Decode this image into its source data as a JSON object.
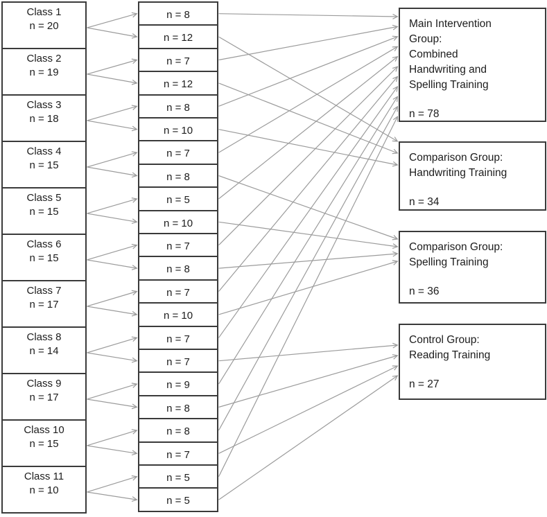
{
  "diagram": {
    "classes": [
      {
        "label": "Class 1",
        "n": "n = 20"
      },
      {
        "label": "Class 2",
        "n": "n = 19"
      },
      {
        "label": "Class 3",
        "n": "n = 18"
      },
      {
        "label": "Class 4",
        "n": "n = 15"
      },
      {
        "label": "Class 5",
        "n": "n = 15"
      },
      {
        "label": "Class 6",
        "n": "n = 15"
      },
      {
        "label": "Class 7",
        "n": "n = 17"
      },
      {
        "label": "Class 8",
        "n": "n = 14"
      },
      {
        "label": "Class 9",
        "n": "n = 17"
      },
      {
        "label": "Class 10",
        "n": "n = 15"
      },
      {
        "label": "Class 11",
        "n": "n = 10"
      }
    ],
    "subgroups": [
      {
        "label": "n = 8",
        "class": 0,
        "group": "main"
      },
      {
        "label": "n = 12",
        "class": 0,
        "group": "handwriting"
      },
      {
        "label": "n = 7",
        "class": 1,
        "group": "main"
      },
      {
        "label": "n = 12",
        "class": 1,
        "group": "handwriting"
      },
      {
        "label": "n = 8",
        "class": 2,
        "group": "main"
      },
      {
        "label": "n = 10",
        "class": 2,
        "group": "handwriting"
      },
      {
        "label": "n = 7",
        "class": 3,
        "group": "main"
      },
      {
        "label": "n = 8",
        "class": 3,
        "group": "spelling"
      },
      {
        "label": "n = 5",
        "class": 4,
        "group": "main"
      },
      {
        "label": "n = 10",
        "class": 4,
        "group": "spelling"
      },
      {
        "label": "n = 7",
        "class": 5,
        "group": "main"
      },
      {
        "label": "n = 8",
        "class": 5,
        "group": "spelling"
      },
      {
        "label": "n = 7",
        "class": 6,
        "group": "main"
      },
      {
        "label": "n = 10",
        "class": 6,
        "group": "spelling"
      },
      {
        "label": "n = 7",
        "class": 7,
        "group": "main"
      },
      {
        "label": "n = 7",
        "class": 7,
        "group": "control"
      },
      {
        "label": "n = 9",
        "class": 8,
        "group": "main"
      },
      {
        "label": "n = 8",
        "class": 8,
        "group": "control"
      },
      {
        "label": "n = 8",
        "class": 9,
        "group": "main"
      },
      {
        "label": "n = 7",
        "class": 9,
        "group": "control"
      },
      {
        "label": "n = 5",
        "class": 10,
        "group": "main"
      },
      {
        "label": "n = 5",
        "class": 10,
        "group": "control"
      }
    ],
    "groups": [
      {
        "id": "main",
        "lines": [
          "Main Intervention",
          "Group:",
          "Combined",
          "Handwriting and",
          "Spelling Training"
        ],
        "n": "n = 78"
      },
      {
        "id": "handwriting",
        "lines": [
          "Comparison Group:",
          "Handwriting Training"
        ],
        "n": "n = 34"
      },
      {
        "id": "spelling",
        "lines": [
          "Comparison Group:",
          "Spelling Training"
        ],
        "n": "n = 36"
      },
      {
        "id": "control",
        "lines": [
          "Control Group:",
          "Reading Training"
        ],
        "n": "n = 27"
      }
    ],
    "colors": {
      "arrow": "#9b9b9b",
      "border": "#3a3a3a",
      "text": "#1c1c1c",
      "background": "#ffffff"
    }
  }
}
